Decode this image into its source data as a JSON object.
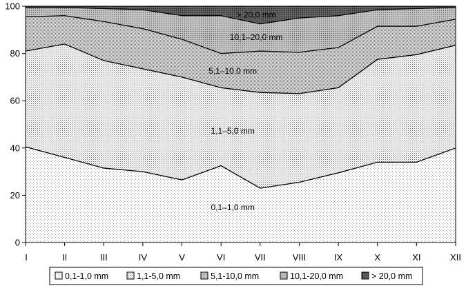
{
  "chart_data": {
    "type": "area",
    "stacked": true,
    "categories": [
      "I",
      "II",
      "III",
      "IV",
      "V",
      "VI",
      "VII",
      "VIII",
      "IX",
      "X",
      "XI",
      "XII"
    ],
    "ylim": [
      0,
      100
    ],
    "yticks": [
      0,
      20,
      40,
      60,
      80,
      100
    ],
    "grid": false,
    "legend_position": "bottom",
    "series": [
      {
        "name": "0,1-1,0 mm",
        "band_label": "0,1–1,0 mm",
        "pattern": "fine-dots",
        "values": [
          40.5,
          36,
          31.5,
          30,
          26.5,
          32.5,
          23,
          25.5,
          29.5,
          34,
          34,
          40
        ]
      },
      {
        "name": "1,1-5,0 mm",
        "band_label": "1,1–5,0 mm",
        "pattern": "dots",
        "values": [
          40.5,
          48,
          45.5,
          43.5,
          43.5,
          33,
          40.5,
          37.5,
          36,
          43.5,
          45.5,
          43.5
        ]
      },
      {
        "name": "5,1-10,0 mm",
        "band_label": "5,1–10,0 mm",
        "pattern": "dense-dots",
        "values": [
          14.5,
          12,
          16.5,
          17,
          16,
          14.5,
          17.5,
          17.5,
          17,
          14,
          12,
          11
        ]
      },
      {
        "name": "10,1-20,0 mm",
        "band_label": "10,1–20,0 mm",
        "pattern": "coarse",
        "values": [
          4,
          3.5,
          5.5,
          8,
          10,
          16,
          11.5,
          14.5,
          13.5,
          7,
          7.5,
          5
        ]
      },
      {
        "name": "> 20,0 mm",
        "band_label": "> 20,0 mm",
        "pattern": "dark",
        "values": [
          0.5,
          0.5,
          1,
          1.5,
          4,
          4,
          7.5,
          5,
          4,
          1.5,
          1,
          0.5
        ]
      }
    ]
  }
}
